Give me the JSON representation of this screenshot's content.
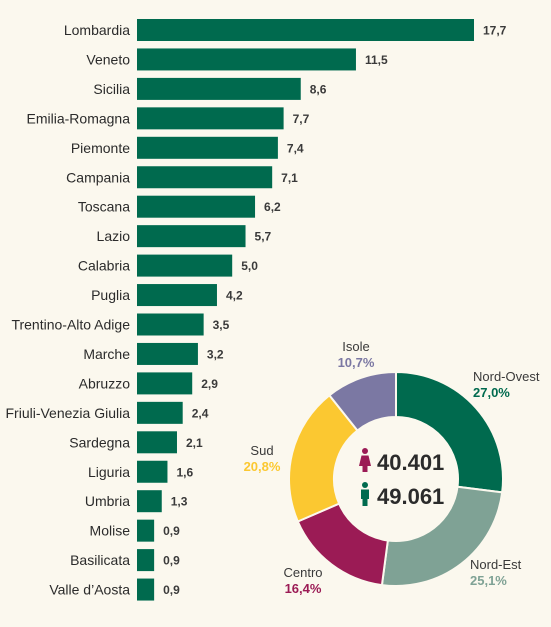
{
  "chart_data": [
    {
      "type": "bar",
      "orientation": "horizontal",
      "categories": [
        "Lombardia",
        "Veneto",
        "Sicilia",
        "Emilia-Romagna",
        "Piemonte",
        "Campania",
        "Toscana",
        "Lazio",
        "Calabria",
        "Puglia",
        "Trentino-Alto Adige",
        "Marche",
        "Abruzzo",
        "Friuli-Venezia Giulia",
        "Sardegna",
        "Liguria",
        "Umbria",
        "Molise",
        "Basilicata",
        "Valle d’Aosta"
      ],
      "values": [
        17.7,
        11.5,
        8.6,
        7.7,
        7.4,
        7.1,
        6.2,
        5.7,
        5.0,
        4.2,
        3.5,
        3.2,
        2.9,
        2.4,
        2.1,
        1.6,
        1.3,
        0.9,
        0.9,
        0.9
      ],
      "value_labels": [
        "17,7",
        "11,5",
        "8,6",
        "7,7",
        "7,4",
        "7,1",
        "6,2",
        "5,7",
        "5,0",
        "4,2",
        "3,5",
        "3,2",
        "2,9",
        "2,4",
        "2,1",
        "1,6",
        "1,3",
        "0,9",
        "0,9",
        "0,9"
      ],
      "color": "#006a4e",
      "xlim": [
        0,
        17.7
      ]
    },
    {
      "type": "pie",
      "donut": true,
      "slices": [
        {
          "name": "Nord-Ovest",
          "value": 27.0,
          "label": "27,0%",
          "color": "#006a4e"
        },
        {
          "name": "Nord-Est",
          "value": 25.1,
          "label": "25,1%",
          "color": "#7fa295"
        },
        {
          "name": "Centro",
          "value": 16.4,
          "label": "16,4%",
          "color": "#9b1b55"
        },
        {
          "name": "Sud",
          "value": 20.8,
          "label": "20,8%",
          "color": "#fbc831"
        },
        {
          "name": "Isole",
          "value": 10.7,
          "label": "10,7%",
          "color": "#7b78a3"
        }
      ],
      "center": {
        "female_value": "40.401",
        "male_value": "49.061",
        "female_color": "#9b1b55",
        "male_color": "#006a4e"
      }
    }
  ],
  "colors": {
    "background": "#fbf8ee",
    "bar": "#006a4e",
    "text": "#2b2b2b"
  }
}
